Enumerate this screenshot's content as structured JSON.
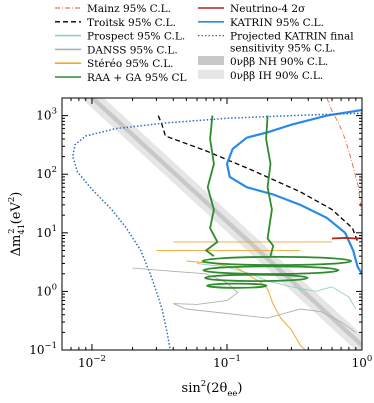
{
  "chart_data": {
    "type": "line",
    "title": "",
    "xlabel": {
      "base": "sin",
      "sup": "2",
      "mid": "(2θ",
      "sub": "ee",
      "end": ")"
    },
    "ylabel": {
      "base": "Δm",
      "sub": "41",
      "sup": "2",
      "end": " (eV",
      "sup2": "2",
      "end2": ")"
    },
    "xscale": "log",
    "yscale": "log",
    "xlim": [
      0.006,
      1
    ],
    "ylim": [
      0.1,
      2000
    ],
    "xticks": [
      {
        "value": 0.01,
        "base": "10",
        "exp": "−2"
      },
      {
        "value": 0.1,
        "base": "10",
        "exp": "−1"
      },
      {
        "value": 1,
        "base": "10",
        "exp": "0"
      }
    ],
    "yticks": [
      {
        "value": 0.1,
        "base": "10",
        "exp": "−1"
      },
      {
        "value": 1,
        "base": "10",
        "exp": "0"
      },
      {
        "value": 10,
        "base": "10",
        "exp": "1"
      },
      {
        "value": 100,
        "base": "10",
        "exp": "2"
      },
      {
        "value": 1000,
        "base": "10",
        "exp": "3"
      }
    ],
    "legend_placement": "top",
    "legend": {
      "left": [
        {
          "text": "Mainz 95% C.L.",
          "color": "#e8735f",
          "style": "dashdot"
        },
        {
          "text": "Troitsk 95% C.L.",
          "color": "#000000",
          "style": "dashed"
        },
        {
          "text": "Prospect 95% C.L.",
          "color": "#8fd3c4",
          "style": "solid"
        },
        {
          "text": "DANSS 95% C.L.",
          "color": "#b0b0b0",
          "style": "solid"
        },
        {
          "text": "Stéréo 95% C.L.",
          "color": "#f0a830",
          "style": "solid"
        },
        {
          "text": "RAA + GA 95% CL",
          "color": "#2e8b2e",
          "style": "solid"
        }
      ],
      "right": [
        {
          "text": "Neutrino-4 2σ",
          "color": "#b22222",
          "style": "solid"
        },
        {
          "text": "KATRIN 95% C.L.",
          "color": "#2b8ae6",
          "style": "solid"
        },
        {
          "text": "Projected KATRIN final",
          "text2": "sensitivity 95% C.L.",
          "color": "#2b6fc0",
          "style": "dotted"
        },
        {
          "text": "0νββ NH 90% C.L.",
          "color": "#c8c8c8",
          "style": "band"
        },
        {
          "text": "0νββ IH 90% C.L.",
          "color": "#e6e6e6",
          "style": "band"
        }
      ]
    },
    "series": [
      {
        "name": "Troitsk 95% C.L.",
        "color": "#000000",
        "style": "dashed",
        "width": 1.3,
        "points": [
          [
            0.031,
            1000
          ],
          [
            0.033,
            700
          ],
          [
            0.035,
            450
          ],
          [
            0.07,
            250
          ],
          [
            0.15,
            120
          ],
          [
            0.35,
            50
          ],
          [
            0.6,
            25
          ],
          [
            0.85,
            12
          ],
          [
            0.93,
            7
          ]
        ]
      },
      {
        "name": "Mainz 95% C.L.",
        "color": "#e8735f",
        "style": "dashdot",
        "width": 1.0,
        "points": [
          [
            0.55,
            2000
          ],
          [
            0.6,
            1200
          ],
          [
            0.68,
            700
          ],
          [
            0.75,
            400
          ],
          [
            0.82,
            200
          ],
          [
            0.88,
            110
          ],
          [
            0.94,
            60
          ],
          [
            0.97,
            35
          ],
          [
            0.99,
            22
          ]
        ]
      },
      {
        "name": "KATRIN 95% C.L.",
        "color": "#2b8ae6",
        "style": "solid",
        "width": 2.2,
        "points": [
          [
            1,
            1250
          ],
          [
            0.55,
            1000
          ],
          [
            0.3,
            700
          ],
          [
            0.2,
            520
          ],
          [
            0.14,
            420
          ],
          [
            0.11,
            270
          ],
          [
            0.1,
            150
          ],
          [
            0.105,
            90
          ],
          [
            0.14,
            60
          ],
          [
            0.22,
            45
          ],
          [
            0.35,
            30
          ],
          [
            0.55,
            18
          ],
          [
            0.75,
            10
          ],
          [
            0.86,
            5
          ],
          [
            0.93,
            2.6
          ],
          [
            1,
            2
          ]
        ]
      },
      {
        "name": "Projected KATRIN final sensitivity 95% C.L.",
        "color": "#2b6fc0",
        "style": "dotted",
        "width": 1.5,
        "points": [
          [
            1,
            1100
          ],
          [
            0.3,
            1000
          ],
          [
            0.1,
            900
          ],
          [
            0.035,
            750
          ],
          [
            0.015,
            600
          ],
          [
            0.009,
            450
          ],
          [
            0.0075,
            320
          ],
          [
            0.0072,
            200
          ],
          [
            0.0078,
            110
          ],
          [
            0.01,
            55
          ],
          [
            0.014,
            25
          ],
          [
            0.018,
            12
          ],
          [
            0.023,
            5
          ],
          [
            0.027,
            2
          ],
          [
            0.03,
            1
          ],
          [
            0.033,
            0.5
          ],
          [
            0.036,
            0.2
          ],
          [
            0.038,
            0.1
          ]
        ]
      },
      {
        "name": "DANSS 95% C.L.",
        "color": "#b0b0b0",
        "style": "solid",
        "width": 0.9,
        "points": [
          [
            0.02,
            2.5
          ],
          [
            0.04,
            2.2
          ],
          [
            0.07,
            2
          ],
          [
            0.1,
            1.4
          ],
          [
            0.12,
            0.95
          ],
          [
            0.1,
            0.7
          ],
          [
            0.06,
            0.6
          ],
          [
            0.04,
            0.62
          ],
          [
            0.05,
            0.5
          ],
          [
            0.1,
            0.42
          ],
          [
            0.2,
            0.35
          ],
          [
            0.35,
            0.5
          ],
          [
            0.5,
            0.45
          ],
          [
            0.7,
            0.3
          ],
          [
            0.9,
            0.2
          ]
        ]
      },
      {
        "name": "Prospect 95% C.L.",
        "color": "#8fd3c4",
        "style": "solid",
        "width": 0.9,
        "points": [
          [
            0.06,
            3
          ],
          [
            0.1,
            2.6
          ],
          [
            0.15,
            2
          ],
          [
            0.2,
            1.5
          ],
          [
            0.3,
            1.2
          ],
          [
            0.45,
            1
          ],
          [
            0.6,
            1.2
          ],
          [
            0.8,
            0.8
          ],
          [
            0.9,
            0.5
          ]
        ]
      },
      {
        "name": "Stéréo 95% C.L.",
        "color": "#f0a830",
        "style": "solid",
        "width": 1.0,
        "points": [
          [
            0.05,
            3.3
          ],
          [
            0.08,
            3
          ],
          [
            0.12,
            2.5
          ],
          [
            0.15,
            1.8
          ],
          [
            0.18,
            1.4
          ],
          [
            0.2,
            1.1
          ],
          [
            0.22,
            0.6
          ],
          [
            0.25,
            0.35
          ],
          [
            0.3,
            0.22
          ],
          [
            0.35,
            0.12
          ],
          [
            0.38,
            0.1
          ]
        ]
      },
      {
        "name": "Neutrino-4 2σ",
        "color": "#b22222",
        "style": "solid",
        "width": 1.8,
        "points": [
          [
            0.6,
            8
          ],
          [
            0.75,
            8.2
          ],
          [
            0.9,
            8
          ],
          [
            0.98,
            8.1
          ]
        ]
      }
    ],
    "hlines": [
      {
        "y": 5,
        "x": [
          0.03,
          0.35
        ],
        "color": "#f0a830"
      },
      {
        "y": 7,
        "x": [
          0.04,
          0.6
        ],
        "color": "#f0a830"
      }
    ],
    "raa_ga": {
      "name": "RAA + GA 95% CL",
      "color": "#2e8b2e",
      "width": 1.8,
      "left": [
        [
          0.078,
          1000
        ],
        [
          0.075,
          400
        ],
        [
          0.08,
          150
        ],
        [
          0.072,
          60
        ],
        [
          0.08,
          25
        ],
        [
          0.075,
          12
        ],
        [
          0.085,
          7
        ],
        [
          0.07,
          5
        ],
        [
          0.08,
          4
        ]
      ],
      "right": [
        [
          0.2,
          1000
        ],
        [
          0.195,
          400
        ],
        [
          0.21,
          150
        ],
        [
          0.2,
          60
        ],
        [
          0.215,
          25
        ],
        [
          0.205,
          12
        ],
        [
          0.2,
          8
        ],
        [
          0.22,
          6
        ],
        [
          0.21,
          4
        ]
      ],
      "loops": [
        {
          "cx": 0.075,
          "cy": 3.3,
          "rx": 0.55,
          "ry": 0.07
        },
        {
          "cx": 0.075,
          "cy": 2.3,
          "rx": 0.5,
          "ry": 0.065
        },
        {
          "cx": 0.075,
          "cy": 1.7,
          "rx": 0.38,
          "ry": 0.055
        },
        {
          "cx": 0.075,
          "cy": 1.25,
          "rx": 0.22,
          "ry": 0.035
        }
      ]
    },
    "bands": [
      {
        "name": "0νββ IH 90% C.L.",
        "color": "#e6e6e6",
        "line": [
          [
            0.006,
            6000
          ],
          [
            1,
            0.12
          ]
        ],
        "half_width_dec": 0.18
      },
      {
        "name": "0νββ NH 90% C.L.",
        "color": "#c8c8c8",
        "line": [
          [
            0.006,
            6000
          ],
          [
            1,
            0.12
          ]
        ],
        "half_width_dec": 0.05
      }
    ]
  }
}
